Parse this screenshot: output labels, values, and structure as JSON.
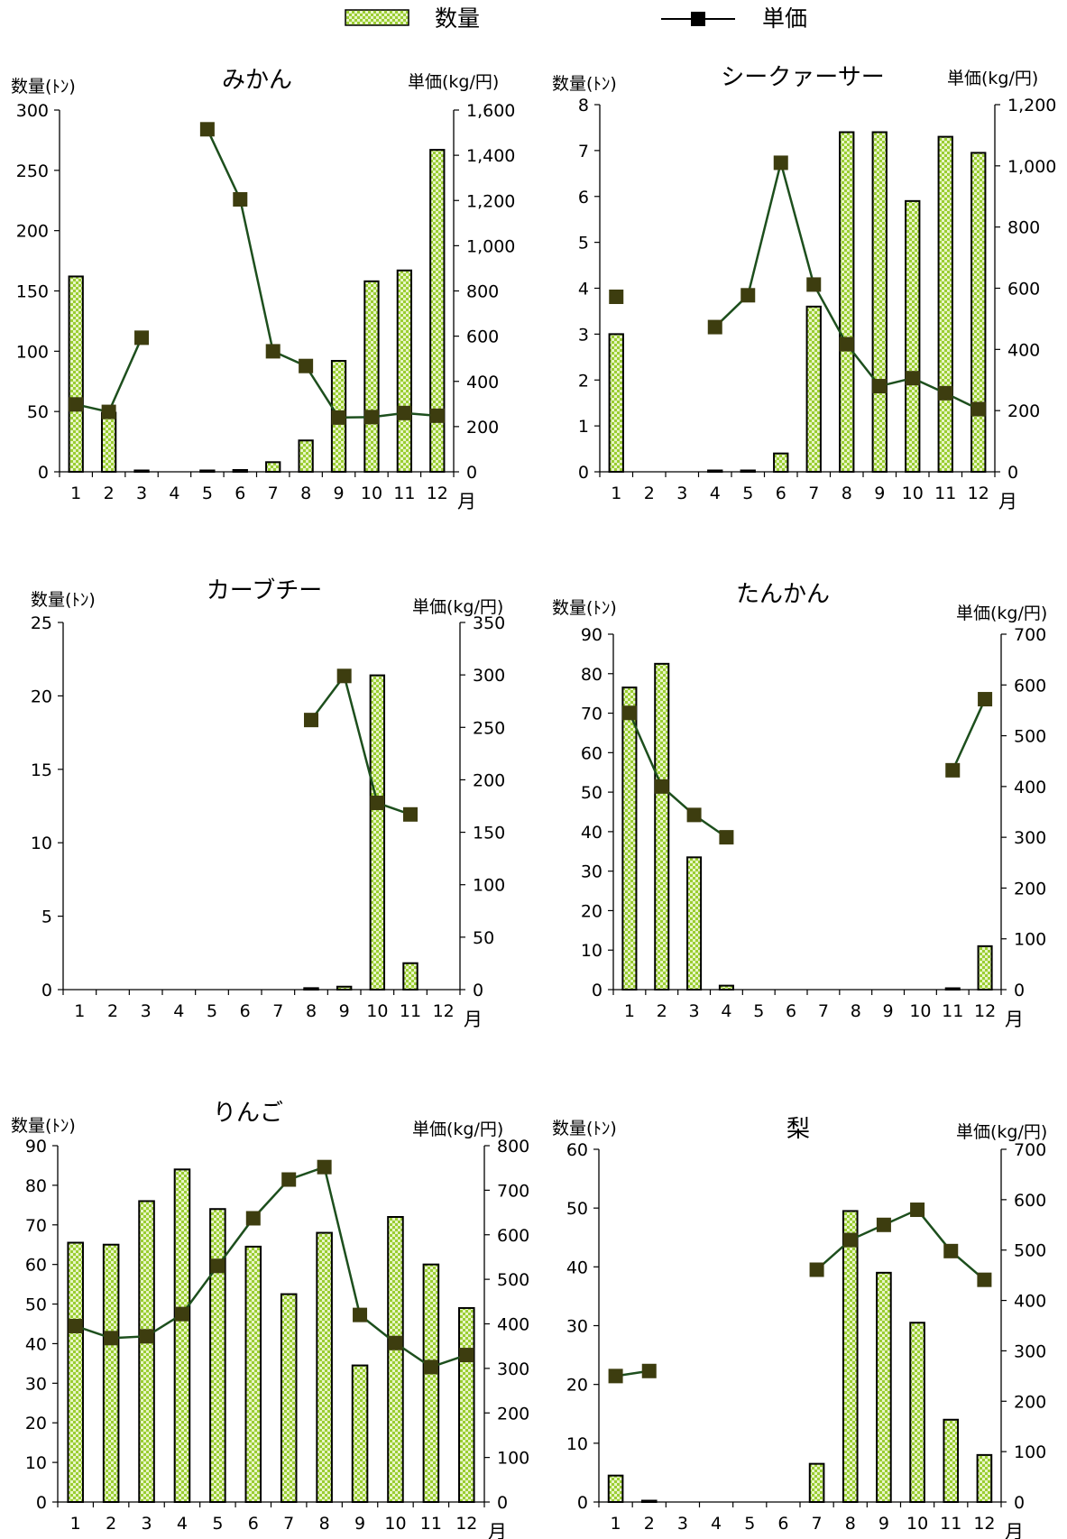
{
  "legend": {
    "bar_label": "数量",
    "line_label": "単価"
  },
  "colors": {
    "bar_fill": "#9acd32",
    "bar_pattern_light": "#e8f5c8",
    "bar_stroke": "#000000",
    "line_stroke": "#1d4f1d",
    "marker_fill": "#3d3d0f"
  },
  "chart_data": [
    {
      "type": "bar",
      "title": "みかん",
      "ylabel": "数量(ﾄﾝ)",
      "y2label": "単価(kg/円)",
      "xunit": "月",
      "categories": [
        "1",
        "2",
        "3",
        "4",
        "5",
        "6",
        "7",
        "8",
        "9",
        "10",
        "11",
        "12"
      ],
      "ylim": [
        0,
        300
      ],
      "yticks": [
        "0",
        "50",
        "100",
        "150",
        "200",
        "250",
        "300"
      ],
      "y2lim": [
        0,
        1600
      ],
      "y2ticks": [
        "0",
        "200",
        "400",
        "600",
        "800",
        "1,000",
        "1,200",
        "1,400",
        "1,600"
      ],
      "series": [
        {
          "name": "数量",
          "type": "bar",
          "values": [
            162,
            49,
            1,
            null,
            0.5,
            1.5,
            8,
            26,
            92,
            158,
            167,
            267
          ]
        },
        {
          "name": "単価",
          "type": "line",
          "axis": "right",
          "values": [
            298,
            265,
            593,
            null,
            1515,
            1205,
            533,
            468,
            240,
            242,
            260,
            248
          ]
        }
      ]
    },
    {
      "type": "bar",
      "title": "シークァーサー",
      "ylabel": "数量(ﾄﾝ)",
      "y2label": "単価(kg/円)",
      "xunit": "月",
      "categories": [
        "1",
        "2",
        "3",
        "4",
        "5",
        "6",
        "7",
        "8",
        "9",
        "10",
        "11",
        "12"
      ],
      "ylim": [
        0,
        8
      ],
      "yticks": [
        "0",
        "1",
        "2",
        "3",
        "4",
        "5",
        "6",
        "7",
        "8"
      ],
      "y2lim": [
        0,
        1200
      ],
      "y2ticks": [
        "0",
        "200",
        "400",
        "600",
        "800",
        "1,000",
        "1,200"
      ],
      "series": [
        {
          "name": "数量",
          "type": "bar",
          "values": [
            3.0,
            null,
            null,
            0.02,
            0.02,
            0.4,
            3.6,
            7.4,
            7.4,
            5.9,
            7.3,
            6.95
          ]
        },
        {
          "name": "単価",
          "type": "line",
          "axis": "right",
          "values": [
            572,
            null,
            null,
            473,
            577,
            1010,
            612,
            417,
            280,
            306,
            257,
            205
          ]
        }
      ]
    },
    {
      "type": "bar",
      "title": "カーブチー",
      "ylabel": "数量(ﾄﾝ)",
      "y2label": "単価(kg/円)",
      "xunit": "月",
      "categories": [
        "1",
        "2",
        "3",
        "4",
        "5",
        "6",
        "7",
        "8",
        "9",
        "10",
        "11",
        "12"
      ],
      "ylim": [
        0,
        25
      ],
      "yticks": [
        "0",
        "5",
        "10",
        "15",
        "20",
        "25"
      ],
      "y2lim": [
        0,
        350
      ],
      "y2ticks": [
        "0",
        "50",
        "100",
        "150",
        "200",
        "250",
        "300",
        "350"
      ],
      "series": [
        {
          "name": "数量",
          "type": "bar",
          "values": [
            null,
            null,
            null,
            null,
            null,
            null,
            null,
            0.1,
            0.2,
            21.4,
            1.8,
            null
          ]
        },
        {
          "name": "単価",
          "type": "line",
          "axis": "right",
          "values": [
            null,
            null,
            null,
            null,
            null,
            null,
            null,
            257,
            299,
            178,
            167,
            null
          ]
        }
      ]
    },
    {
      "type": "bar",
      "title": "たんかん",
      "ylabel": "数量(ﾄﾝ)",
      "y2label": "単価(kg/円)",
      "xunit": "月",
      "categories": [
        "1",
        "2",
        "3",
        "4",
        "5",
        "6",
        "7",
        "8",
        "9",
        "10",
        "11",
        "12"
      ],
      "ylim": [
        0,
        90
      ],
      "yticks": [
        "0",
        "10",
        "20",
        "30",
        "40",
        "50",
        "60",
        "70",
        "80",
        "90"
      ],
      "y2lim": [
        0,
        700
      ],
      "y2ticks": [
        "0",
        "100",
        "200",
        "300",
        "400",
        "500",
        "600",
        "700"
      ],
      "series": [
        {
          "name": "数量",
          "type": "bar",
          "values": [
            76.5,
            82.5,
            33.5,
            1.0,
            null,
            null,
            null,
            null,
            null,
            null,
            0.2,
            11
          ]
        },
        {
          "name": "単価",
          "type": "line",
          "axis": "right",
          "values": [
            545,
            400,
            344,
            300,
            null,
            null,
            null,
            null,
            null,
            null,
            432,
            572
          ]
        }
      ]
    },
    {
      "type": "bar",
      "title": "りんご",
      "ylabel": "数量(ﾄﾝ)",
      "y2label": "単価(kg/円)",
      "xunit": "月",
      "categories": [
        "1",
        "2",
        "3",
        "4",
        "5",
        "6",
        "7",
        "8",
        "9",
        "10",
        "11",
        "12"
      ],
      "ylim": [
        0,
        90
      ],
      "yticks": [
        "0",
        "10",
        "20",
        "30",
        "40",
        "50",
        "60",
        "70",
        "80",
        "90"
      ],
      "y2lim": [
        0,
        800
      ],
      "y2ticks": [
        "0",
        "100",
        "200",
        "300",
        "400",
        "500",
        "600",
        "700",
        "800"
      ],
      "series": [
        {
          "name": "数量",
          "type": "bar",
          "values": [
            65.5,
            65,
            76,
            84,
            74,
            64.5,
            52.5,
            68,
            34.5,
            72,
            60,
            49
          ]
        },
        {
          "name": "単価",
          "type": "line",
          "axis": "right",
          "values": [
            395,
            368,
            372,
            422,
            530,
            637,
            724,
            752,
            420,
            357,
            303,
            330
          ]
        }
      ]
    },
    {
      "type": "bar",
      "title": "梨",
      "ylabel": "数量(ﾄﾝ)",
      "y2label": "単価(kg/円)",
      "xunit": "月",
      "categories": [
        "1",
        "2",
        "3",
        "4",
        "5",
        "6",
        "7",
        "8",
        "9",
        "10",
        "11",
        "12"
      ],
      "ylim": [
        0,
        60
      ],
      "yticks": [
        "0",
        "10",
        "20",
        "30",
        "40",
        "50",
        "60"
      ],
      "y2lim": [
        0,
        700
      ],
      "y2ticks": [
        "0",
        "100",
        "200",
        "300",
        "400",
        "500",
        "600",
        "700"
      ],
      "series": [
        {
          "name": "数量",
          "type": "bar",
          "values": [
            4.5,
            0.1,
            null,
            null,
            null,
            null,
            6.5,
            49.5,
            39,
            30.5,
            14,
            8
          ]
        },
        {
          "name": "単価",
          "type": "line",
          "axis": "right",
          "values": [
            250,
            260,
            null,
            null,
            null,
            null,
            461,
            520,
            550,
            580,
            498,
            441
          ]
        }
      ]
    }
  ]
}
